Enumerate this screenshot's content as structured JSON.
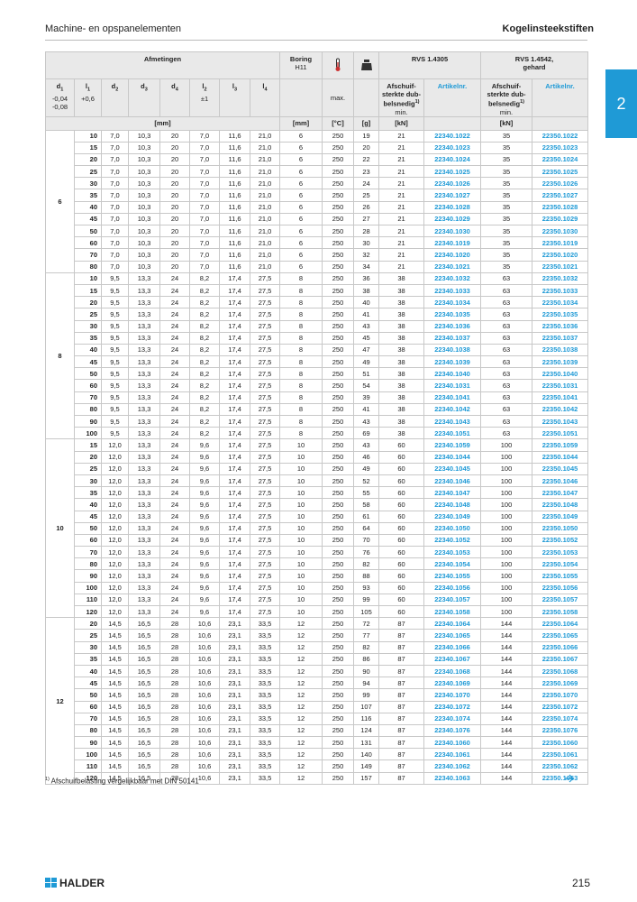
{
  "header": {
    "left": "Machine- en opspanelementen",
    "right": "Kogelinsteekstiften",
    "tab": "2"
  },
  "table": {
    "head": {
      "afmetingen": "Afmetingen",
      "boring": "Boring",
      "boring_tol": "H11",
      "rvs1": "RVS 1.4305",
      "rvs2": "RVS 1.4542,",
      "rvs2b": "gehard",
      "cols": [
        {
          "sym": "d",
          "sub": "1",
          "tol": [
            "-0,04",
            "-0,08"
          ]
        },
        {
          "sym": "l",
          "sub": "1",
          "tol": [
            "+0,6"
          ]
        },
        {
          "sym": "d",
          "sub": "2",
          "tol": []
        },
        {
          "sym": "d",
          "sub": "3",
          "tol": []
        },
        {
          "sym": "d",
          "sub": "4",
          "tol": []
        },
        {
          "sym": "l",
          "sub": "2",
          "tol": [
            "±1"
          ]
        },
        {
          "sym": "l",
          "sub": "3",
          "tol": []
        },
        {
          "sym": "l",
          "sub": "4",
          "tol": []
        }
      ],
      "max": "max.",
      "shear": [
        "Afschuif-",
        "sterkte dub-",
        "belsnedig",
        "min."
      ],
      "shear_sup": "1)",
      "artikel": "Artikelnr.",
      "units": {
        "mm": "[mm]",
        "mm2": "[mm]",
        "c": "[°C]",
        "g": "[g]",
        "kn1": "[kN]",
        "kn2": "[kN]"
      }
    },
    "groups": [
      {
        "d1": "6",
        "rows": [
          [
            "10",
            "7,0",
            "10,3",
            "20",
            "7,0",
            "11,6",
            "21,0",
            "6",
            "250",
            "19",
            "21",
            "22340.1022",
            "35",
            "22350.1022"
          ],
          [
            "15",
            "7,0",
            "10,3",
            "20",
            "7,0",
            "11,6",
            "21,0",
            "6",
            "250",
            "20",
            "21",
            "22340.1023",
            "35",
            "22350.1023"
          ],
          [
            "20",
            "7,0",
            "10,3",
            "20",
            "7,0",
            "11,6",
            "21,0",
            "6",
            "250",
            "22",
            "21",
            "22340.1024",
            "35",
            "22350.1024"
          ],
          [
            "25",
            "7,0",
            "10,3",
            "20",
            "7,0",
            "11,6",
            "21,0",
            "6",
            "250",
            "23",
            "21",
            "22340.1025",
            "35",
            "22350.1025"
          ],
          [
            "30",
            "7,0",
            "10,3",
            "20",
            "7,0",
            "11,6",
            "21,0",
            "6",
            "250",
            "24",
            "21",
            "22340.1026",
            "35",
            "22350.1026"
          ],
          [
            "35",
            "7,0",
            "10,3",
            "20",
            "7,0",
            "11,6",
            "21,0",
            "6",
            "250",
            "25",
            "21",
            "22340.1027",
            "35",
            "22350.1027"
          ],
          [
            "40",
            "7,0",
            "10,3",
            "20",
            "7,0",
            "11,6",
            "21,0",
            "6",
            "250",
            "26",
            "21",
            "22340.1028",
            "35",
            "22350.1028"
          ],
          [
            "45",
            "7,0",
            "10,3",
            "20",
            "7,0",
            "11,6",
            "21,0",
            "6",
            "250",
            "27",
            "21",
            "22340.1029",
            "35",
            "22350.1029"
          ],
          [
            "50",
            "7,0",
            "10,3",
            "20",
            "7,0",
            "11,6",
            "21,0",
            "6",
            "250",
            "28",
            "21",
            "22340.1030",
            "35",
            "22350.1030"
          ],
          [
            "60",
            "7,0",
            "10,3",
            "20",
            "7,0",
            "11,6",
            "21,0",
            "6",
            "250",
            "30",
            "21",
            "22340.1019",
            "35",
            "22350.1019"
          ],
          [
            "70",
            "7,0",
            "10,3",
            "20",
            "7,0",
            "11,6",
            "21,0",
            "6",
            "250",
            "32",
            "21",
            "22340.1020",
            "35",
            "22350.1020"
          ],
          [
            "80",
            "7,0",
            "10,3",
            "20",
            "7,0",
            "11,6",
            "21,0",
            "6",
            "250",
            "34",
            "21",
            "22340.1021",
            "35",
            "22350.1021"
          ]
        ]
      },
      {
        "d1": "8",
        "rows": [
          [
            "10",
            "9,5",
            "13,3",
            "24",
            "8,2",
            "17,4",
            "27,5",
            "8",
            "250",
            "36",
            "38",
            "22340.1032",
            "63",
            "22350.1032"
          ],
          [
            "15",
            "9,5",
            "13,3",
            "24",
            "8,2",
            "17,4",
            "27,5",
            "8",
            "250",
            "38",
            "38",
            "22340.1033",
            "63",
            "22350.1033"
          ],
          [
            "20",
            "9,5",
            "13,3",
            "24",
            "8,2",
            "17,4",
            "27,5",
            "8",
            "250",
            "40",
            "38",
            "22340.1034",
            "63",
            "22350.1034"
          ],
          [
            "25",
            "9,5",
            "13,3",
            "24",
            "8,2",
            "17,4",
            "27,5",
            "8",
            "250",
            "41",
            "38",
            "22340.1035",
            "63",
            "22350.1035"
          ],
          [
            "30",
            "9,5",
            "13,3",
            "24",
            "8,2",
            "17,4",
            "27,5",
            "8",
            "250",
            "43",
            "38",
            "22340.1036",
            "63",
            "22350.1036"
          ],
          [
            "35",
            "9,5",
            "13,3",
            "24",
            "8,2",
            "17,4",
            "27,5",
            "8",
            "250",
            "45",
            "38",
            "22340.1037",
            "63",
            "22350.1037"
          ],
          [
            "40",
            "9,5",
            "13,3",
            "24",
            "8,2",
            "17,4",
            "27,5",
            "8",
            "250",
            "47",
            "38",
            "22340.1038",
            "63",
            "22350.1038"
          ],
          [
            "45",
            "9,5",
            "13,3",
            "24",
            "8,2",
            "17,4",
            "27,5",
            "8",
            "250",
            "49",
            "38",
            "22340.1039",
            "63",
            "22350.1039"
          ],
          [
            "50",
            "9,5",
            "13,3",
            "24",
            "8,2",
            "17,4",
            "27,5",
            "8",
            "250",
            "51",
            "38",
            "22340.1040",
            "63",
            "22350.1040"
          ],
          [
            "60",
            "9,5",
            "13,3",
            "24",
            "8,2",
            "17,4",
            "27,5",
            "8",
            "250",
            "54",
            "38",
            "22340.1031",
            "63",
            "22350.1031"
          ],
          [
            "70",
            "9,5",
            "13,3",
            "24",
            "8,2",
            "17,4",
            "27,5",
            "8",
            "250",
            "39",
            "38",
            "22340.1041",
            "63",
            "22350.1041"
          ],
          [
            "80",
            "9,5",
            "13,3",
            "24",
            "8,2",
            "17,4",
            "27,5",
            "8",
            "250",
            "41",
            "38",
            "22340.1042",
            "63",
            "22350.1042"
          ],
          [
            "90",
            "9,5",
            "13,3",
            "24",
            "8,2",
            "17,4",
            "27,5",
            "8",
            "250",
            "43",
            "38",
            "22340.1043",
            "63",
            "22350.1043"
          ],
          [
            "100",
            "9,5",
            "13,3",
            "24",
            "8,2",
            "17,4",
            "27,5",
            "8",
            "250",
            "69",
            "38",
            "22340.1051",
            "63",
            "22350.1051"
          ]
        ]
      },
      {
        "d1": "10",
        "rows": [
          [
            "15",
            "12,0",
            "13,3",
            "24",
            "9,6",
            "17,4",
            "27,5",
            "10",
            "250",
            "43",
            "60",
            "22340.1059",
            "100",
            "22350.1059"
          ],
          [
            "20",
            "12,0",
            "13,3",
            "24",
            "9,6",
            "17,4",
            "27,5",
            "10",
            "250",
            "46",
            "60",
            "22340.1044",
            "100",
            "22350.1044"
          ],
          [
            "25",
            "12,0",
            "13,3",
            "24",
            "9,6",
            "17,4",
            "27,5",
            "10",
            "250",
            "49",
            "60",
            "22340.1045",
            "100",
            "22350.1045"
          ],
          [
            "30",
            "12,0",
            "13,3",
            "24",
            "9,6",
            "17,4",
            "27,5",
            "10",
            "250",
            "52",
            "60",
            "22340.1046",
            "100",
            "22350.1046"
          ],
          [
            "35",
            "12,0",
            "13,3",
            "24",
            "9,6",
            "17,4",
            "27,5",
            "10",
            "250",
            "55",
            "60",
            "22340.1047",
            "100",
            "22350.1047"
          ],
          [
            "40",
            "12,0",
            "13,3",
            "24",
            "9,6",
            "17,4",
            "27,5",
            "10",
            "250",
            "58",
            "60",
            "22340.1048",
            "100",
            "22350.1048"
          ],
          [
            "45",
            "12,0",
            "13,3",
            "24",
            "9,6",
            "17,4",
            "27,5",
            "10",
            "250",
            "61",
            "60",
            "22340.1049",
            "100",
            "22350.1049"
          ],
          [
            "50",
            "12,0",
            "13,3",
            "24",
            "9,6",
            "17,4",
            "27,5",
            "10",
            "250",
            "64",
            "60",
            "22340.1050",
            "100",
            "22350.1050"
          ],
          [
            "60",
            "12,0",
            "13,3",
            "24",
            "9,6",
            "17,4",
            "27,5",
            "10",
            "250",
            "70",
            "60",
            "22340.1052",
            "100",
            "22350.1052"
          ],
          [
            "70",
            "12,0",
            "13,3",
            "24",
            "9,6",
            "17,4",
            "27,5",
            "10",
            "250",
            "76",
            "60",
            "22340.1053",
            "100",
            "22350.1053"
          ],
          [
            "80",
            "12,0",
            "13,3",
            "24",
            "9,6",
            "17,4",
            "27,5",
            "10",
            "250",
            "82",
            "60",
            "22340.1054",
            "100",
            "22350.1054"
          ],
          [
            "90",
            "12,0",
            "13,3",
            "24",
            "9,6",
            "17,4",
            "27,5",
            "10",
            "250",
            "88",
            "60",
            "22340.1055",
            "100",
            "22350.1055"
          ],
          [
            "100",
            "12,0",
            "13,3",
            "24",
            "9,6",
            "17,4",
            "27,5",
            "10",
            "250",
            "93",
            "60",
            "22340.1056",
            "100",
            "22350.1056"
          ],
          [
            "110",
            "12,0",
            "13,3",
            "24",
            "9,6",
            "17,4",
            "27,5",
            "10",
            "250",
            "99",
            "60",
            "22340.1057",
            "100",
            "22350.1057"
          ],
          [
            "120",
            "12,0",
            "13,3",
            "24",
            "9,6",
            "17,4",
            "27,5",
            "10",
            "250",
            "105",
            "60",
            "22340.1058",
            "100",
            "22350.1058"
          ]
        ]
      },
      {
        "d1": "12",
        "rows": [
          [
            "20",
            "14,5",
            "16,5",
            "28",
            "10,6",
            "23,1",
            "33,5",
            "12",
            "250",
            "72",
            "87",
            "22340.1064",
            "144",
            "22350.1064"
          ],
          [
            "25",
            "14,5",
            "16,5",
            "28",
            "10,6",
            "23,1",
            "33,5",
            "12",
            "250",
            "77",
            "87",
            "22340.1065",
            "144",
            "22350.1065"
          ],
          [
            "30",
            "14,5",
            "16,5",
            "28",
            "10,6",
            "23,1",
            "33,5",
            "12",
            "250",
            "82",
            "87",
            "22340.1066",
            "144",
            "22350.1066"
          ],
          [
            "35",
            "14,5",
            "16,5",
            "28",
            "10,6",
            "23,1",
            "33,5",
            "12",
            "250",
            "86",
            "87",
            "22340.1067",
            "144",
            "22350.1067"
          ],
          [
            "40",
            "14,5",
            "16,5",
            "28",
            "10,6",
            "23,1",
            "33,5",
            "12",
            "250",
            "90",
            "87",
            "22340.1068",
            "144",
            "22350.1068"
          ],
          [
            "45",
            "14,5",
            "16,5",
            "28",
            "10,6",
            "23,1",
            "33,5",
            "12",
            "250",
            "94",
            "87",
            "22340.1069",
            "144",
            "22350.1069"
          ],
          [
            "50",
            "14,5",
            "16,5",
            "28",
            "10,6",
            "23,1",
            "33,5",
            "12",
            "250",
            "99",
            "87",
            "22340.1070",
            "144",
            "22350.1070"
          ],
          [
            "60",
            "14,5",
            "16,5",
            "28",
            "10,6",
            "23,1",
            "33,5",
            "12",
            "250",
            "107",
            "87",
            "22340.1072",
            "144",
            "22350.1072"
          ],
          [
            "70",
            "14,5",
            "16,5",
            "28",
            "10,6",
            "23,1",
            "33,5",
            "12",
            "250",
            "116",
            "87",
            "22340.1074",
            "144",
            "22350.1074"
          ],
          [
            "80",
            "14,5",
            "16,5",
            "28",
            "10,6",
            "23,1",
            "33,5",
            "12",
            "250",
            "124",
            "87",
            "22340.1076",
            "144",
            "22350.1076"
          ],
          [
            "90",
            "14,5",
            "16,5",
            "28",
            "10,6",
            "23,1",
            "33,5",
            "12",
            "250",
            "131",
            "87",
            "22340.1060",
            "144",
            "22350.1060"
          ],
          [
            "100",
            "14,5",
            "16,5",
            "28",
            "10,6",
            "23,1",
            "33,5",
            "12",
            "250",
            "140",
            "87",
            "22340.1061",
            "144",
            "22350.1061"
          ],
          [
            "110",
            "14,5",
            "16,5",
            "28",
            "10,6",
            "23,1",
            "33,5",
            "12",
            "250",
            "149",
            "87",
            "22340.1062",
            "144",
            "22350.1062"
          ],
          [
            "120",
            "14,5",
            "16,5",
            "28",
            "10,6",
            "23,1",
            "33,5",
            "12",
            "250",
            "157",
            "87",
            "22340.1063",
            "144",
            "22350.1063"
          ]
        ]
      }
    ]
  },
  "footnote": {
    "sup": "1)",
    "text": "Afschuifbelasting vergelijkbaar met DIN 50141"
  },
  "footer": {
    "logo": "HALDER",
    "page": "215"
  }
}
